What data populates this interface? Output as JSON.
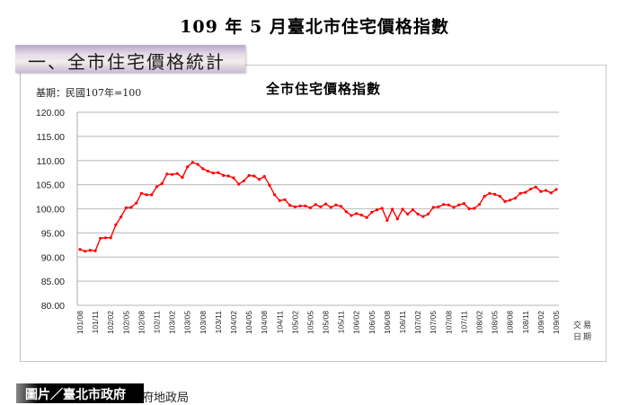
{
  "page": {
    "main_title": "109 年 5 月臺北市住宅價格指數",
    "section_heading": "一、全市住宅價格統計",
    "credit_label": "圖片／臺北市政府",
    "source_fragment": "府地政局"
  },
  "chart_data": {
    "type": "line",
    "title": "全市住宅價格指數",
    "subtitle": "基期：民國107年=100",
    "xlabel": "交易日期",
    "xlabel_lines": [
      "交易",
      "日期"
    ],
    "ylabel": "",
    "ylim": [
      80,
      120
    ],
    "yticks": [
      "80.00",
      "85.00",
      "90.00",
      "95.00",
      "100.00",
      "105.00",
      "110.00",
      "115.00",
      "120.00"
    ],
    "grid": true,
    "legend": "none",
    "line_color": "#ff0000",
    "x_tick_labels": [
      "101/08",
      "101/11",
      "102/02",
      "102/05",
      "102/08",
      "102/11",
      "103/02",
      "103/05",
      "103/08",
      "103/11",
      "104/02",
      "104/05",
      "104/08",
      "104/11",
      "105/02",
      "105/05",
      "105/08",
      "105/11",
      "106/02",
      "106/05",
      "106/08",
      "106/11",
      "107/02",
      "107/05",
      "107/08",
      "107/11",
      "108/02",
      "108/05",
      "108/08",
      "108/11",
      "109/02",
      "109/05"
    ],
    "x_tick_step_months": 3,
    "x_start": "101/08",
    "x_end": "109/05",
    "series": [
      {
        "name": "全市住宅價格指數",
        "values": [
          91.6,
          91.2,
          91.4,
          91.3,
          93.9,
          94.0,
          94.0,
          96.7,
          98.3,
          100.2,
          100.3,
          101.2,
          103.2,
          102.9,
          102.9,
          104.6,
          105.2,
          107.2,
          107.1,
          107.3,
          106.5,
          108.7,
          109.6,
          109.2,
          108.3,
          107.8,
          107.4,
          107.5,
          106.9,
          106.8,
          106.4,
          105.1,
          105.8,
          106.9,
          106.8,
          106.1,
          106.7,
          104.9,
          102.9,
          101.7,
          101.9,
          100.7,
          100.4,
          100.6,
          100.6,
          100.2,
          100.9,
          100.4,
          101.0,
          100.3,
          100.8,
          100.5,
          99.4,
          98.6,
          99.0,
          98.7,
          98.2,
          99.3,
          99.8,
          100.1,
          97.6,
          99.9,
          97.9,
          99.9,
          98.9,
          99.8,
          98.9,
          98.4,
          98.9,
          100.3,
          100.4,
          100.9,
          100.8,
          100.3,
          100.8,
          101.1,
          100.0,
          100.1,
          100.9,
          102.6,
          103.2,
          103.0,
          102.6,
          101.5,
          101.8,
          102.2,
          103.2,
          103.4,
          104.1,
          104.5,
          103.6,
          103.8,
          103.3,
          104.0
        ]
      }
    ]
  }
}
